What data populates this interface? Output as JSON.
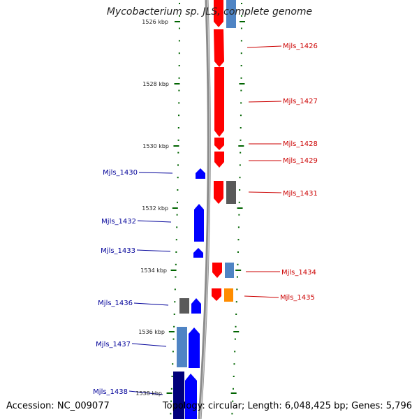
{
  "title": "Mycobacterium sp. JLS, complete genome",
  "footer": {
    "accession": "Accession: NC_009077",
    "topology": "Topology: circular; Length: 6,048,425 bp; Genes: 5,796"
  },
  "colors": {
    "forward": "#ff0000",
    "reverse": "#0000ff",
    "forward_other": "#5a5a5a",
    "reverse_other": "#4f84c4",
    "forward_light": "#ff8c00",
    "reverse_dark": "#00007a",
    "ticks": "#006400",
    "label_forward": "#cc0000",
    "label_reverse": "#000099",
    "backbone": "#888888"
  },
  "ticks": [
    "1526 kbp",
    "1528 kbp",
    "1530 kbp",
    "1532 kbp",
    "1534 kbp",
    "1536 kbp",
    "1538 kbp"
  ],
  "genes_forward": [
    "Mjls_1426",
    "Mjls_1427",
    "Mjls_1428",
    "Mjls_1429",
    "Mjls_1431",
    "Mjls_1434",
    "Mjls_1435"
  ],
  "genes_reverse": [
    "Mjls_1430",
    "Mjls_1432",
    "Mjls_1433",
    "Mjls_1436",
    "Mjls_1437",
    "Mjls_1438"
  ]
}
